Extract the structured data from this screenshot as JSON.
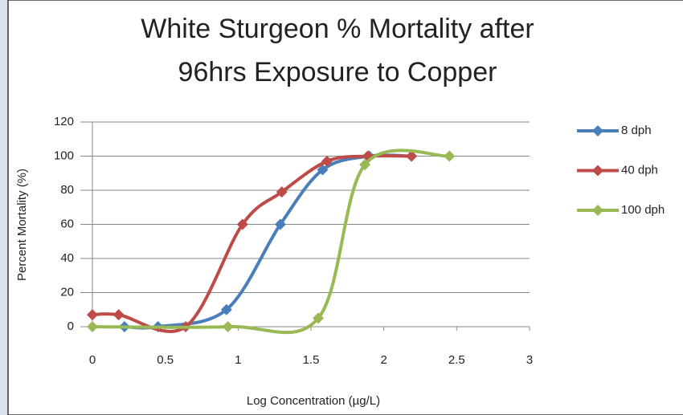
{
  "chart_data": {
    "type": "scatter-smooth",
    "title": [
      "White Sturgeon % Mortality after",
      "96hrs Exposure to Copper"
    ],
    "x_label": "Log Concentration (µg/L)",
    "y_label": "Percent Mortality (%)",
    "xlim": [
      0,
      3
    ],
    "xticks": [
      0,
      0.5,
      1,
      1.5,
      2,
      2.5,
      3
    ],
    "ylim": [
      0,
      120
    ],
    "yticks": [
      0,
      20,
      40,
      60,
      80,
      100,
      120
    ],
    "grid": true,
    "legend": "right",
    "series": [
      {
        "name": "8 dph",
        "color": "#4a7ebb",
        "x": [
          0.22,
          0.45,
          0.92,
          1.29,
          1.58,
          1.9,
          2.19
        ],
        "values": [
          0,
          0,
          10,
          60,
          92,
          100,
          100
        ]
      },
      {
        "name": "40 dph",
        "color": "#be4b48",
        "x": [
          0,
          0.18,
          0.64,
          1.03,
          1.3,
          1.61,
          1.89,
          2.19
        ],
        "values": [
          7,
          7,
          0,
          60,
          79,
          97,
          100,
          100
        ]
      },
      {
        "name": "100 dph",
        "color": "#98b954",
        "x": [
          0,
          0.93,
          1.55,
          1.87,
          2.45
        ],
        "values": [
          0,
          0,
          5,
          95,
          100
        ]
      }
    ]
  }
}
